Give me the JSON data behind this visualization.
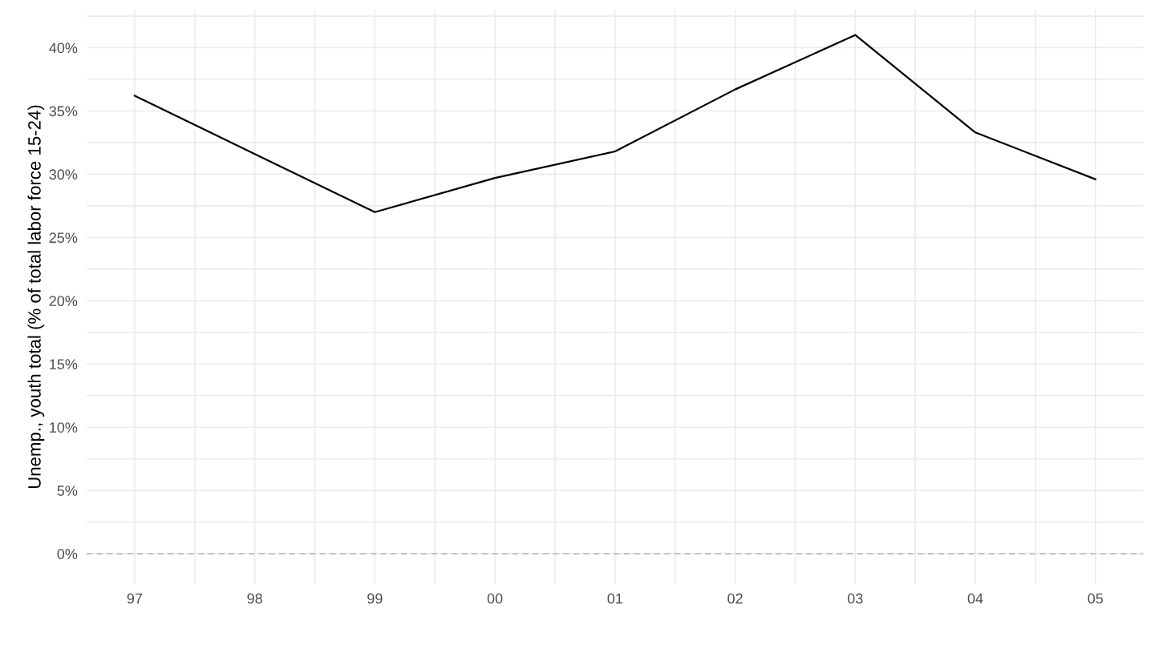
{
  "chart_data": {
    "type": "line",
    "ylabel": "Unemp., youth total (% of total labor force 15-24)",
    "x": [
      1997,
      1998,
      1999,
      2000,
      2001,
      2002,
      2003,
      2004,
      2005
    ],
    "series": [
      {
        "color": "#000000",
        "values": [
          36.2,
          31.6,
          27.0,
          29.7,
          31.8,
          36.7,
          41.0,
          33.3,
          29.6
        ]
      }
    ],
    "xlim": [
      1996.6,
      2005.4
    ],
    "ylim": [
      -2.4,
      43.0
    ],
    "xticks": [
      {
        "value": 1997,
        "label": "97"
      },
      {
        "value": 1997.5,
        "label": null
      },
      {
        "value": 1998,
        "label": "98"
      },
      {
        "value": 1998.5,
        "label": null
      },
      {
        "value": 1999,
        "label": "99"
      },
      {
        "value": 1999.5,
        "label": null
      },
      {
        "value": 2000,
        "label": "00"
      },
      {
        "value": 2000.5,
        "label": null
      },
      {
        "value": 2001,
        "label": "01"
      },
      {
        "value": 2001.5,
        "label": null
      },
      {
        "value": 2002,
        "label": "02"
      },
      {
        "value": 2002.5,
        "label": null
      },
      {
        "value": 2003,
        "label": "03"
      },
      {
        "value": 2003.5,
        "label": null
      },
      {
        "value": 2004,
        "label": "04"
      },
      {
        "value": 2004.5,
        "label": null
      },
      {
        "value": 2005,
        "label": "05"
      }
    ],
    "yticks": [
      {
        "value": 0,
        "label": "0%"
      },
      {
        "value": 2.5,
        "label": null
      },
      {
        "value": 5,
        "label": "5%"
      },
      {
        "value": 7.5,
        "label": null
      },
      {
        "value": 10,
        "label": "10%"
      },
      {
        "value": 12.5,
        "label": null
      },
      {
        "value": 15,
        "label": "15%"
      },
      {
        "value": 17.5,
        "label": null
      },
      {
        "value": 20,
        "label": "20%"
      },
      {
        "value": 22.5,
        "label": null
      },
      {
        "value": 25,
        "label": "25%"
      },
      {
        "value": 27.5,
        "label": null
      },
      {
        "value": 30,
        "label": "30%"
      },
      {
        "value": 32.5,
        "label": null
      },
      {
        "value": 35,
        "label": "35%"
      },
      {
        "value": 37.5,
        "label": null
      },
      {
        "value": 40,
        "label": "40%"
      },
      {
        "value": 42.5,
        "label": null
      }
    ],
    "ref_lines": [
      {
        "axis": "y",
        "value": 0,
        "color": "#bbbbbb",
        "line_style": "dashed"
      }
    ],
    "grid": true,
    "legend": false
  }
}
